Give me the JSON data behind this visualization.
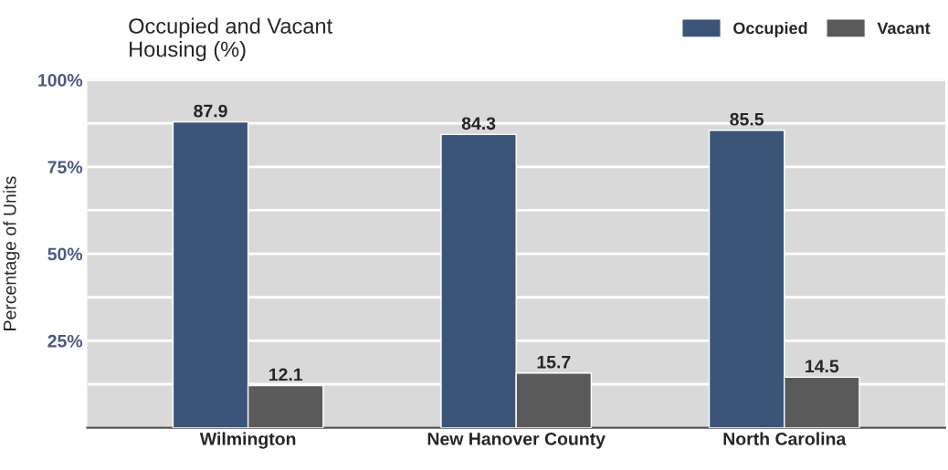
{
  "chart_data": {
    "type": "bar",
    "title": "Occupied and Vacant\nHousing (%)",
    "ylabel": "Percentage of Units",
    "categories": [
      "Wilmington",
      "New Hanover County",
      "North Carolina"
    ],
    "series": [
      {
        "name": "Occupied",
        "color": "#3a5577",
        "values": [
          87.9,
          84.3,
          85.5
        ]
      },
      {
        "name": "Vacant",
        "color": "#5a5a5a",
        "values": [
          12.1,
          15.7,
          14.5
        ]
      }
    ],
    "ylim": [
      0,
      100
    ],
    "yticks": [
      {
        "value": 0,
        "label": null
      },
      {
        "value": 12.5,
        "label": null
      },
      {
        "value": 25,
        "label": "25%"
      },
      {
        "value": 37.5,
        "label": null
      },
      {
        "value": 50,
        "label": "50%"
      },
      {
        "value": 62.5,
        "label": null
      },
      {
        "value": 75,
        "label": "75%"
      },
      {
        "value": 87.5,
        "label": null
      },
      {
        "value": 100,
        "label": "100%"
      }
    ],
    "grid": "y",
    "legend": "top right",
    "data_labels": true
  }
}
